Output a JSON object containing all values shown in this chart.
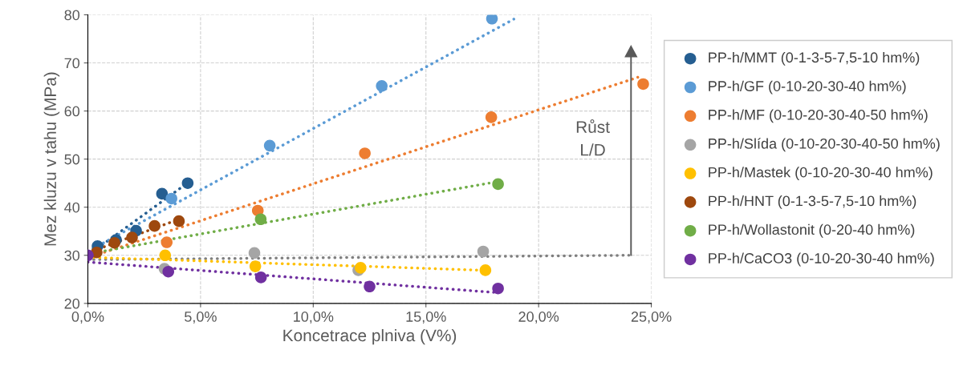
{
  "chart_data": {
    "type": "scatter",
    "xlabel": "Koncetrace plniva (V%)",
    "ylabel": "Mez kluzu v tahu (MPa)",
    "xlim": [
      0,
      25
    ],
    "ylim": [
      20,
      80
    ],
    "xticks": [
      {
        "value": 0,
        "label": "0,0%"
      },
      {
        "value": 5,
        "label": "5,0%"
      },
      {
        "value": 10,
        "label": "10,0%"
      },
      {
        "value": 15,
        "label": "15,0%"
      },
      {
        "value": 20,
        "label": "20,0%"
      },
      {
        "value": 25,
        "label": "25,0%"
      }
    ],
    "yticks": [
      20,
      30,
      40,
      50,
      60,
      70,
      80
    ],
    "grid": true,
    "legend": "right",
    "marker": "circle",
    "annotations": [
      "Růst\nL/D"
    ],
    "series": [
      {
        "type": "line",
        "color": "#255e91",
        "x": [
          0,
          4.5
        ],
        "values": [
          30.0,
          45.3
        ],
        "line_style": "dotted",
        "marker": "none"
      },
      {
        "type": "line",
        "color": "#5b9bd5",
        "x": [
          0,
          18.9
        ],
        "values": [
          30.8,
          79.1
        ],
        "line_style": "dotted",
        "marker": "none"
      },
      {
        "type": "line",
        "color": "#ed7d31",
        "x": [
          0,
          24.4
        ],
        "values": [
          29.5,
          67.0
        ],
        "line_style": "dotted",
        "marker": "none"
      },
      {
        "type": "line",
        "color": "#7f7f7f",
        "x": [
          0,
          24.0
        ],
        "values": [
          29.1,
          30.0
        ],
        "line_style": "dotted",
        "marker": "none"
      },
      {
        "type": "line",
        "color": "#ffc000",
        "x": [
          0,
          17.5
        ],
        "values": [
          29.6,
          26.9
        ],
        "line_style": "dotted",
        "marker": "none"
      },
      {
        "type": "line",
        "color": "#9e480e",
        "x": [
          0,
          4.1
        ],
        "values": [
          30.5,
          37.6
        ],
        "line_style": "dotted",
        "marker": "none"
      },
      {
        "type": "line",
        "color": "#70ad47",
        "x": [
          0,
          17.8
        ],
        "values": [
          30.3,
          45.0
        ],
        "line_style": "dotted",
        "marker": "none"
      },
      {
        "type": "line",
        "color": "#7030a0",
        "x": [
          0,
          18.0
        ],
        "values": [
          28.6,
          22.3
        ],
        "line_style": "dotted",
        "marker": "none"
      },
      {
        "name": "PP-h/MMT (0-1-3-5-7,5-10 hm%)",
        "color": "#255e91",
        "x": [
          0.43,
          1.25,
          2.14,
          3.29,
          4.43
        ],
        "values": [
          31.9,
          33.2,
          35.1,
          42.8,
          45.0
        ]
      },
      {
        "name": "PP-h/GF (0-10-20-30-40 hm%)",
        "color": "#5b9bd5",
        "x": [
          3.71,
          8.07,
          13.04,
          17.93
        ],
        "values": [
          41.8,
          52.8,
          65.2,
          79.2
        ]
      },
      {
        "name": "PP-h/MF (0-10-20-30-40-50 hm%)",
        "color": "#ed7d31",
        "x": [
          3.5,
          7.54,
          12.29,
          17.9,
          24.64
        ],
        "values": [
          32.7,
          39.3,
          51.2,
          58.7,
          65.6
        ]
      },
      {
        "name": "PP-h/Slída (0-10-20-30-40-50 hm%)",
        "color": "#a5a5a5",
        "x": [
          3.4,
          7.39,
          12.0,
          17.54
        ],
        "values": [
          27.2,
          30.5,
          26.9,
          30.8
        ]
      },
      {
        "name": "PP-h/Mastek (0-10-20-30-40 hm%)",
        "color": "#ffc000",
        "x": [
          3.43,
          7.43,
          12.1,
          17.64
        ],
        "values": [
          30.0,
          27.7,
          27.4,
          26.9
        ]
      },
      {
        "name": "PP-h/HNT (0-1-3-5-7,5-10 hm%)",
        "color": "#9e480e",
        "x": [
          0.39,
          1.18,
          1.96,
          2.96,
          4.04
        ],
        "values": [
          30.6,
          32.6,
          33.7,
          36.1,
          37.1
        ]
      },
      {
        "name": "PP-h/Wollastonit (0-20-40 hm%)",
        "color": "#70ad47",
        "x": [
          7.67,
          18.2
        ],
        "values": [
          37.5,
          44.8
        ]
      },
      {
        "name": "PP-h/CaCO3 (0-10-20-30-40 hm%)",
        "color": "#7030a0",
        "x": [
          0,
          3.57,
          7.68,
          12.5,
          18.2
        ],
        "values": [
          30,
          26.6,
          25.4,
          23.5,
          23.1
        ]
      }
    ]
  }
}
